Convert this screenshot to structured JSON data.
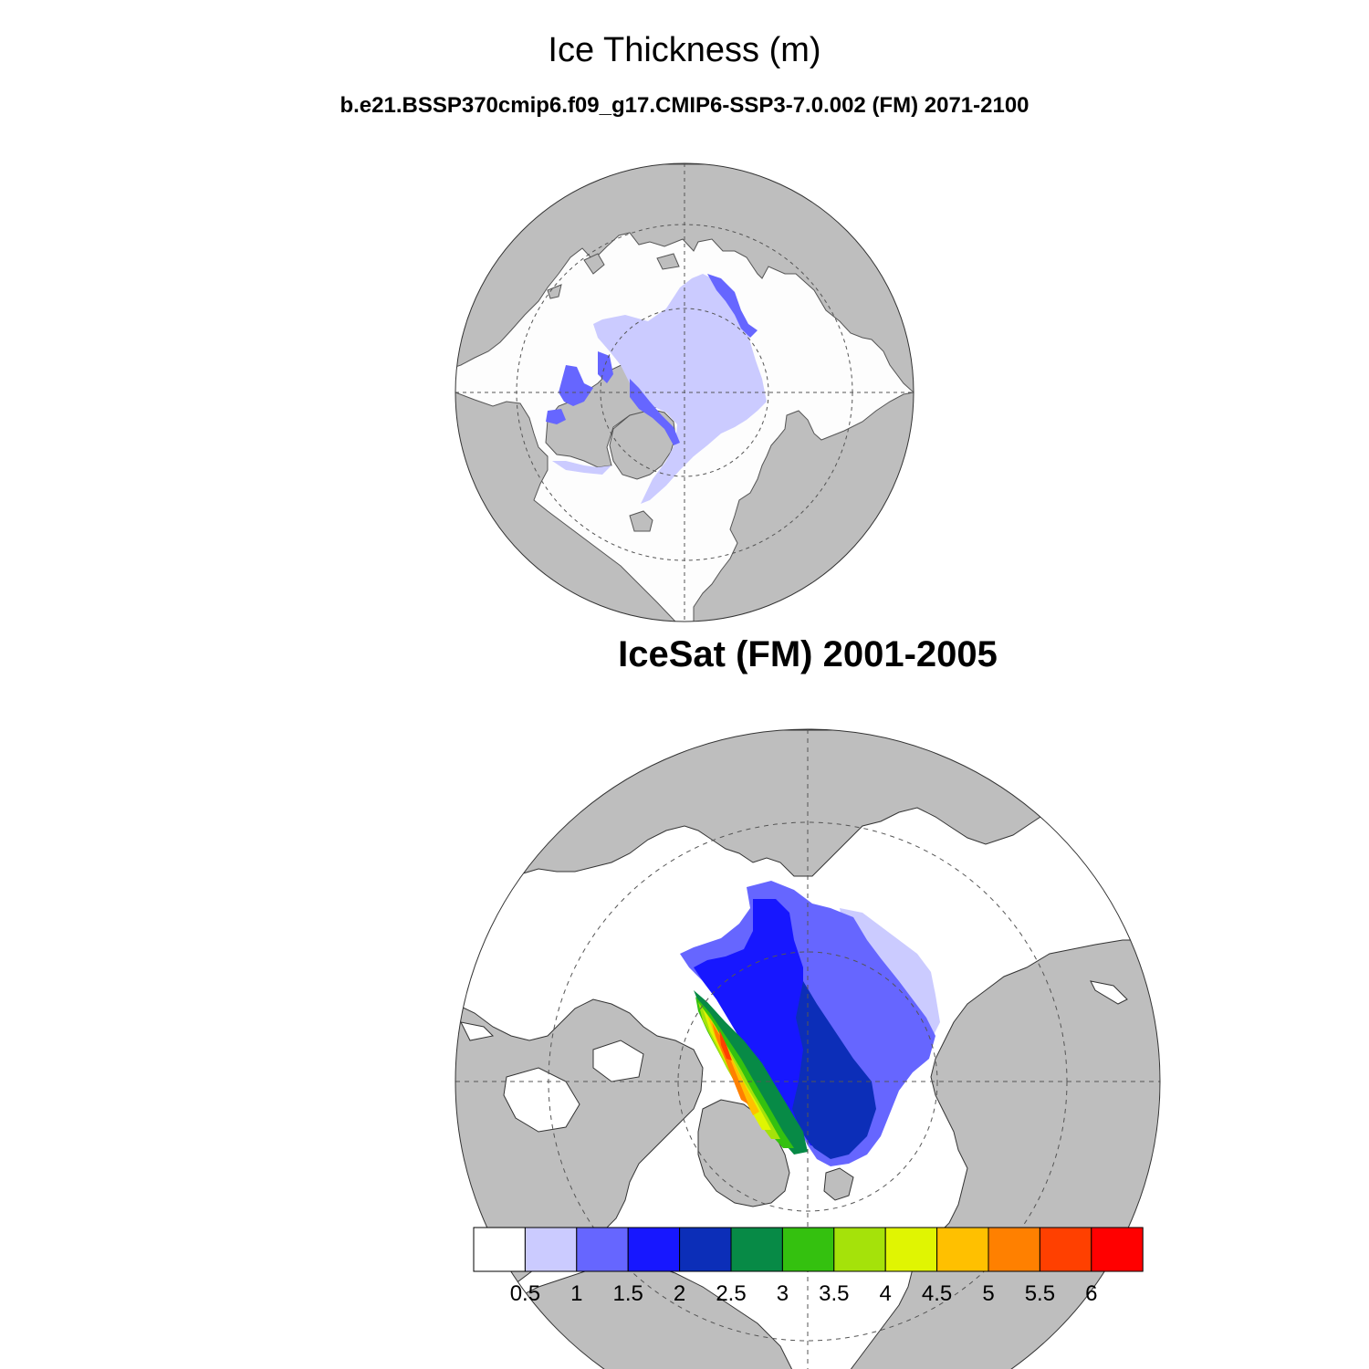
{
  "title": "Ice Thickness (m)",
  "subtitle": "b.e21.BSSP370cmip6.f09_g17.CMIP6-SSP3-7.0.002 (FM) 2071-2100",
  "panel2_title": "IceSat (FM) 2001-2005",
  "colors": {
    "land": "#bebebe",
    "ocean": "#fdfdfd",
    "coast": "#555555",
    "grid": "#555555"
  },
  "colorbar": {
    "labels": [
      "0.5",
      "1",
      "1.5",
      "2",
      "2.5",
      "3",
      "3.5",
      "4",
      "4.5",
      "5",
      "5.5",
      "6"
    ],
    "colors": [
      "#ffffff",
      "#cbcbff",
      "#6666ff",
      "#1717ff",
      "#0c2eb8",
      "#078a46",
      "#34c10f",
      "#a5e20a",
      "#e0f502",
      "#ffc000",
      "#ff8000",
      "#ff4000",
      "#ff0000"
    ]
  }
}
